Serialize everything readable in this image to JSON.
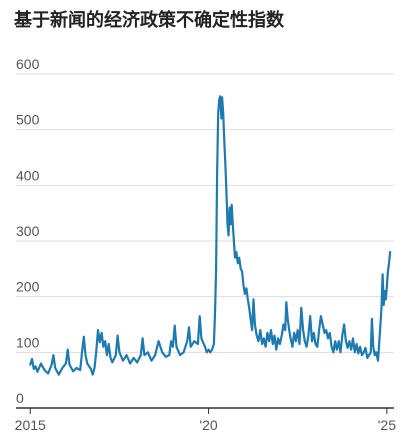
{
  "title": "基于新闻的经济政策不确定性指数",
  "chart_data": {
    "type": "line",
    "title": "基于新闻的经济政策不确定性指数",
    "xlabel": "",
    "ylabel": "",
    "ylim": [
      0,
      600
    ],
    "xlim": [
      2014.6,
      2025.2
    ],
    "yticks": [
      0,
      100,
      200,
      300,
      400,
      500,
      600
    ],
    "ytick_labels": [
      "0",
      "100",
      "200",
      "300",
      "400",
      "500",
      "600"
    ],
    "xticks": [
      2015,
      2020,
      2025
    ],
    "xtick_labels": [
      "2015",
      "'20",
      "'25"
    ],
    "grid": true,
    "legend": "none",
    "color": "#1f7ab0",
    "series": [
      {
        "values": [
          [
            2015.0,
            78
          ],
          [
            2015.05,
            88
          ],
          [
            2015.1,
            70
          ],
          [
            2015.15,
            75
          ],
          [
            2015.2,
            65
          ],
          [
            2015.3,
            80
          ],
          [
            2015.4,
            68
          ],
          [
            2015.5,
            62
          ],
          [
            2015.6,
            78
          ],
          [
            2015.65,
            95
          ],
          [
            2015.7,
            72
          ],
          [
            2015.8,
            60
          ],
          [
            2015.9,
            72
          ],
          [
            2016.0,
            80
          ],
          [
            2016.05,
            105
          ],
          [
            2016.1,
            78
          ],
          [
            2016.2,
            66
          ],
          [
            2016.3,
            72
          ],
          [
            2016.4,
            68
          ],
          [
            2016.45,
            100
          ],
          [
            2016.5,
            128
          ],
          [
            2016.55,
            95
          ],
          [
            2016.6,
            80
          ],
          [
            2016.7,
            70
          ],
          [
            2016.75,
            60
          ],
          [
            2016.8,
            72
          ],
          [
            2016.85,
            100
          ],
          [
            2016.9,
            140
          ],
          [
            2016.95,
            118
          ],
          [
            2017.0,
            135
          ],
          [
            2017.05,
            110
          ],
          [
            2017.1,
            120
          ],
          [
            2017.15,
            95
          ],
          [
            2017.2,
            115
          ],
          [
            2017.25,
            90
          ],
          [
            2017.3,
            82
          ],
          [
            2017.4,
            95
          ],
          [
            2017.45,
            130
          ],
          [
            2017.5,
            100
          ],
          [
            2017.6,
            85
          ],
          [
            2017.7,
            95
          ],
          [
            2017.8,
            80
          ],
          [
            2017.9,
            90
          ],
          [
            2018.0,
            82
          ],
          [
            2018.1,
            95
          ],
          [
            2018.15,
            125
          ],
          [
            2018.2,
            95
          ],
          [
            2018.3,
            100
          ],
          [
            2018.4,
            85
          ],
          [
            2018.5,
            95
          ],
          [
            2018.6,
            120
          ],
          [
            2018.7,
            100
          ],
          [
            2018.8,
            92
          ],
          [
            2018.9,
            95
          ],
          [
            2018.95,
            120
          ],
          [
            2019.0,
            110
          ],
          [
            2019.05,
            148
          ],
          [
            2019.1,
            110
          ],
          [
            2019.2,
            95
          ],
          [
            2019.3,
            100
          ],
          [
            2019.4,
            120
          ],
          [
            2019.45,
            145
          ],
          [
            2019.5,
            110
          ],
          [
            2019.6,
            120
          ],
          [
            2019.7,
            115
          ],
          [
            2019.75,
            165
          ],
          [
            2019.8,
            125
          ],
          [
            2019.9,
            110
          ],
          [
            2019.95,
            100
          ],
          [
            2020.0,
            105
          ],
          [
            2020.05,
            100
          ],
          [
            2020.1,
            105
          ],
          [
            2020.15,
            115
          ],
          [
            2020.18,
            170
          ],
          [
            2020.21,
            250
          ],
          [
            2020.24,
            420
          ],
          [
            2020.27,
            530
          ],
          [
            2020.3,
            555
          ],
          [
            2020.33,
            560
          ],
          [
            2020.36,
            520
          ],
          [
            2020.38,
            558
          ],
          [
            2020.41,
            530
          ],
          [
            2020.44,
            480
          ],
          [
            2020.47,
            440
          ],
          [
            2020.5,
            390
          ],
          [
            2020.53,
            330
          ],
          [
            2020.56,
            310
          ],
          [
            2020.59,
            360
          ],
          [
            2020.62,
            330
          ],
          [
            2020.65,
            365
          ],
          [
            2020.68,
            330
          ],
          [
            2020.71,
            300
          ],
          [
            2020.74,
            270
          ],
          [
            2020.78,
            280
          ],
          [
            2020.82,
            260
          ],
          [
            2020.86,
            270
          ],
          [
            2020.9,
            250
          ],
          [
            2020.94,
            245
          ],
          [
            2020.98,
            220
          ],
          [
            2021.02,
            205
          ],
          [
            2021.06,
            215
          ],
          [
            2021.1,
            195
          ],
          [
            2021.14,
            180
          ],
          [
            2021.18,
            160
          ],
          [
            2021.22,
            140
          ],
          [
            2021.26,
            195
          ],
          [
            2021.3,
            150
          ],
          [
            2021.35,
            130
          ],
          [
            2021.4,
            120
          ],
          [
            2021.45,
            140
          ],
          [
            2021.5,
            115
          ],
          [
            2021.55,
            125
          ],
          [
            2021.6,
            110
          ],
          [
            2021.65,
            135
          ],
          [
            2021.7,
            120
          ],
          [
            2021.75,
            140
          ],
          [
            2021.8,
            115
          ],
          [
            2021.85,
            130
          ],
          [
            2021.9,
            105
          ],
          [
            2021.95,
            125
          ],
          [
            2022.0,
            115
          ],
          [
            2022.05,
            130
          ],
          [
            2022.1,
            150
          ],
          [
            2022.15,
            140
          ],
          [
            2022.18,
            190
          ],
          [
            2022.22,
            160
          ],
          [
            2022.26,
            140
          ],
          [
            2022.3,
            125
          ],
          [
            2022.35,
            110
          ],
          [
            2022.4,
            135
          ],
          [
            2022.45,
            120
          ],
          [
            2022.5,
            140
          ],
          [
            2022.55,
            115
          ],
          [
            2022.6,
            180
          ],
          [
            2022.65,
            140
          ],
          [
            2022.7,
            120
          ],
          [
            2022.75,
            110
          ],
          [
            2022.8,
            130
          ],
          [
            2022.85,
            165
          ],
          [
            2022.9,
            120
          ],
          [
            2022.95,
            135
          ],
          [
            2023.0,
            115
          ],
          [
            2023.05,
            110
          ],
          [
            2023.1,
            140
          ],
          [
            2023.15,
            165
          ],
          [
            2023.2,
            150
          ],
          [
            2023.25,
            135
          ],
          [
            2023.3,
            140
          ],
          [
            2023.35,
            125
          ],
          [
            2023.4,
            135
          ],
          [
            2023.45,
            110
          ],
          [
            2023.5,
            100
          ],
          [
            2023.55,
            120
          ],
          [
            2023.6,
            105
          ],
          [
            2023.65,
            120
          ],
          [
            2023.7,
            100
          ],
          [
            2023.75,
            130
          ],
          [
            2023.8,
            150
          ],
          [
            2023.85,
            120
          ],
          [
            2023.9,
            108
          ],
          [
            2023.95,
            120
          ],
          [
            2024.0,
            105
          ],
          [
            2024.05,
            125
          ],
          [
            2024.1,
            100
          ],
          [
            2024.15,
            115
          ],
          [
            2024.2,
            98
          ],
          [
            2024.25,
            110
          ],
          [
            2024.3,
            95
          ],
          [
            2024.35,
            100
          ],
          [
            2024.4,
            108
          ],
          [
            2024.45,
            90
          ],
          [
            2024.5,
            95
          ],
          [
            2024.55,
            100
          ],
          [
            2024.58,
            160
          ],
          [
            2024.62,
            110
          ],
          [
            2024.66,
            95
          ],
          [
            2024.7,
            100
          ],
          [
            2024.75,
            85
          ],
          [
            2024.8,
            130
          ],
          [
            2024.85,
            180
          ],
          [
            2024.88,
            240
          ],
          [
            2024.91,
            185
          ],
          [
            2024.94,
            210
          ],
          [
            2024.97,
            195
          ],
          [
            2025.0,
            220
          ],
          [
            2025.03,
            245
          ],
          [
            2025.06,
            260
          ],
          [
            2025.09,
            280
          ]
        ]
      }
    ]
  }
}
